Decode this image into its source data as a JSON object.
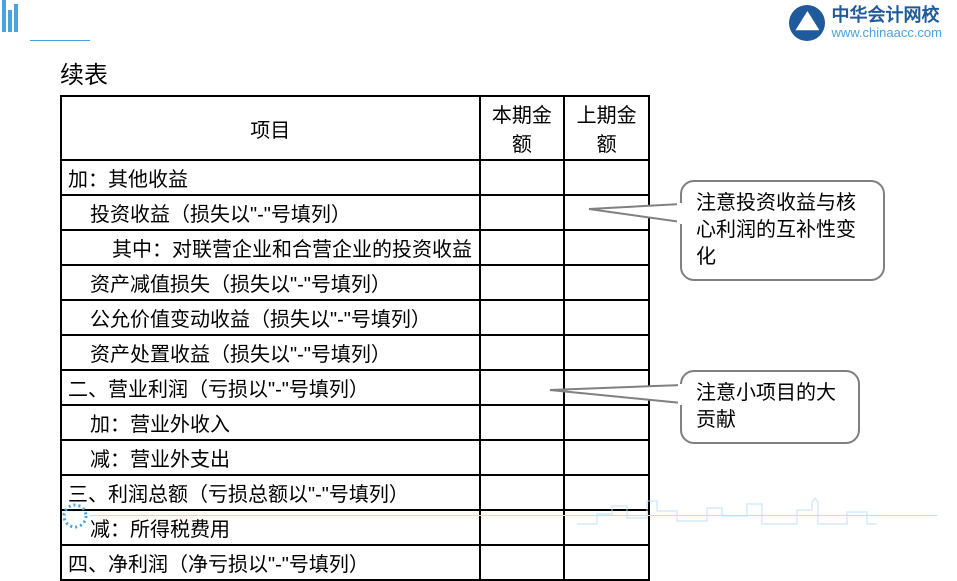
{
  "logo": {
    "name_cn": "中华会计网校",
    "url": "www.chinaacc.com",
    "brand_color": "#1e5a9c",
    "accent_color": "#4aa3df"
  },
  "title": "续表",
  "table": {
    "header": {
      "item": "项目",
      "current": "本期金额",
      "previous": "上期金额"
    },
    "rows": [
      {
        "indent": 1,
        "label": "加：其他收益",
        "current": "",
        "previous": ""
      },
      {
        "indent": 2,
        "label": "投资收益（损失以\"-\"号填列）",
        "current": "",
        "previous": ""
      },
      {
        "indent": 3,
        "label": "其中：对联营企业和合营企业的投资收益",
        "current": "",
        "previous": ""
      },
      {
        "indent": 2,
        "label": "资产减值损失（损失以\"-\"号填列）",
        "current": "",
        "previous": ""
      },
      {
        "indent": 2,
        "label": "公允价值变动收益（损失以\"-\"号填列）",
        "current": "",
        "previous": ""
      },
      {
        "indent": 2,
        "label": "资产处置收益（损失以\"-\"号填列）",
        "current": "",
        "previous": ""
      },
      {
        "indent": 1,
        "label": "二、营业利润（亏损以\"-\"号填列）",
        "current": "",
        "previous": ""
      },
      {
        "indent": 2,
        "label": "加：营业外收入",
        "current": "",
        "previous": ""
      },
      {
        "indent": 2,
        "label": "减：营业外支出",
        "current": "",
        "previous": ""
      },
      {
        "indent": 1,
        "label": "三、利润总额（亏损总额以\"-\"号填列）",
        "current": "",
        "previous": ""
      },
      {
        "indent": 2,
        "label": "减：所得税费用",
        "current": "",
        "previous": ""
      },
      {
        "indent": 1,
        "label": "四、净利润（净亏损以\"-\"号填列）",
        "current": "",
        "previous": ""
      }
    ],
    "border_color": "#000000",
    "font_size": 20
  },
  "callouts": [
    {
      "text": "注意投资收益与核心利润的互补性变化",
      "target_row": 2
    },
    {
      "text": "注意小项目的大贡献",
      "target_row": 8
    }
  ],
  "colors": {
    "background": "#ffffff",
    "text": "#000000",
    "decoration": "#4aa3df",
    "callout_border": "#808080"
  }
}
